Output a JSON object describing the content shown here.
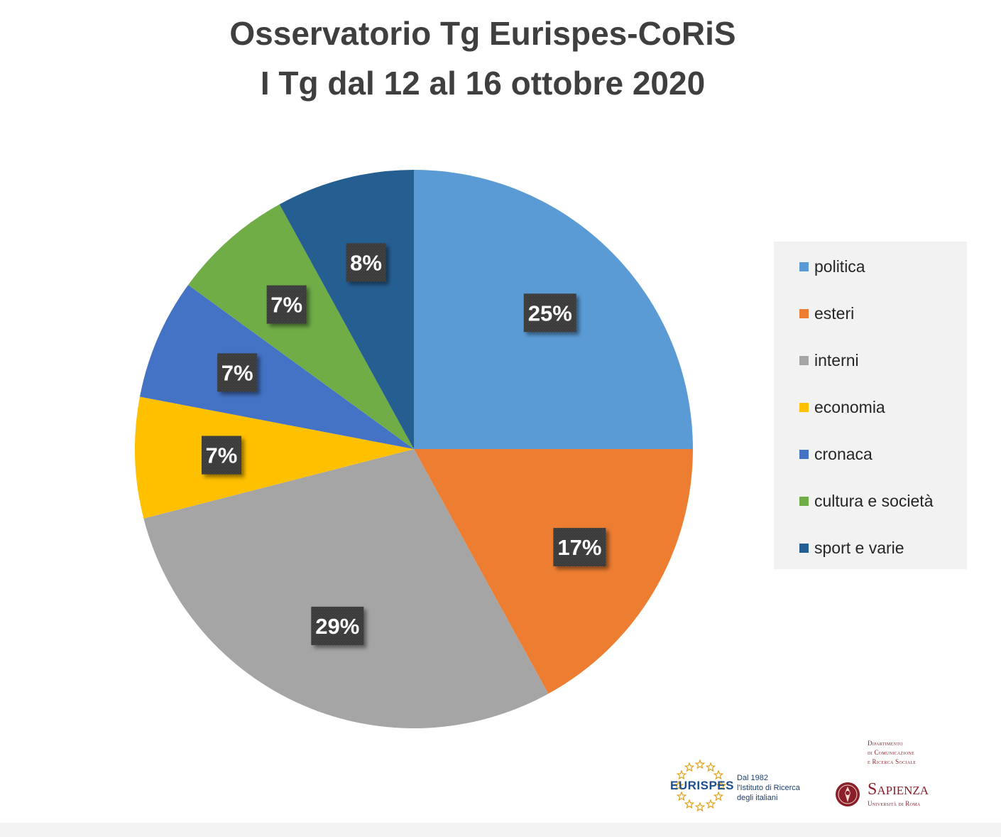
{
  "chart_data": {
    "type": "pie",
    "title": "Osservatorio Tg Eurispes-CoRiS",
    "subtitle": "I Tg dal 12 al 16 ottobre 2020",
    "categories": [
      "politica",
      "esteri",
      "interni",
      "economia",
      "cronaca",
      "cultura e società",
      "sport e varie"
    ],
    "values": [
      25,
      17,
      29,
      7,
      7,
      7,
      8
    ],
    "data_labels": [
      "25%",
      "17%",
      "29%",
      "7%",
      "7%",
      "7%",
      "8%"
    ],
    "colors": [
      "#5b9bd5",
      "#ed7d31",
      "#a5a5a5",
      "#ffc000",
      "#4472c4",
      "#70ad47",
      "#255e91"
    ],
    "start_angle": "12 o'clock",
    "direction": "clockwise",
    "legend_position": "right"
  },
  "logos": {
    "eurispes": {
      "name": "EURISPES",
      "tagline": [
        "Dal 1982",
        "l'Istituto di Ricerca",
        "degli italiani"
      ]
    },
    "sapienza": {
      "department": [
        "Dipartimento",
        "di Comunicazione",
        "e Ricerca Sociale"
      ],
      "name": "Sapienza",
      "subtitle": "Università di Roma"
    }
  }
}
